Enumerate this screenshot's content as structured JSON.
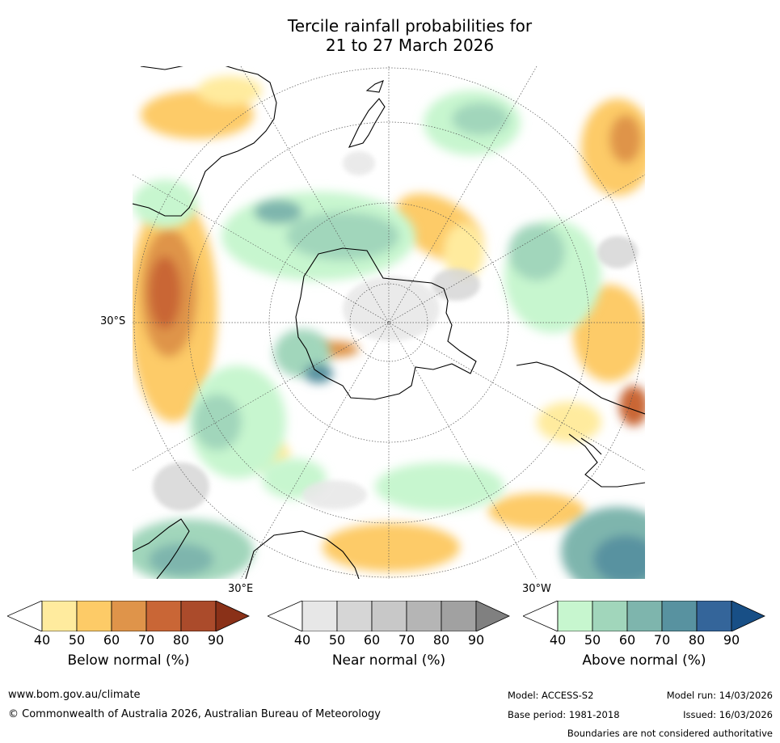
{
  "title": {
    "line1": "Tercile rainfall probabilities for",
    "line2": "21 to 27 March 2026"
  },
  "map": {
    "lat_label": "30°S",
    "lon_labels": {
      "east": "30°E",
      "west": "30°W"
    }
  },
  "colorbars": [
    {
      "label": "Below normal (%)",
      "ticks": [
        "40",
        "50",
        "60",
        "70",
        "80",
        "90"
      ],
      "colors": [
        "#ffffff",
        "#ffeb9e",
        "#fdcb67",
        "#df944a",
        "#c96636",
        "#ab4b2b",
        "#8a3118"
      ]
    },
    {
      "label": "Near normal (%)",
      "ticks": [
        "40",
        "50",
        "60",
        "70",
        "80",
        "90"
      ],
      "colors": [
        "#ffffff",
        "#e7e7e7",
        "#d6d6d6",
        "#c8c8c8",
        "#b5b5b5",
        "#a1a1a1",
        "#808080"
      ]
    },
    {
      "label": "Above normal (%)",
      "ticks": [
        "40",
        "50",
        "60",
        "70",
        "80",
        "90"
      ],
      "colors": [
        "#ffffff",
        "#c7f6cf",
        "#a1d6bb",
        "#7eb5ad",
        "#5892a0",
        "#34659a",
        "#184f86"
      ]
    }
  ],
  "footer": {
    "website": "www.bom.gov.au/climate",
    "copyright": "© Commonwealth of Australia 2026, Australian Bureau of Meteorology",
    "model": "Model: ACCESS-S2",
    "base_period": "Base period: 1981-2018",
    "model_run": "Model run: 14/03/2026",
    "issued": "Issued: 16/03/2026",
    "disclaimer": "Boundaries are not considered authoritative"
  }
}
